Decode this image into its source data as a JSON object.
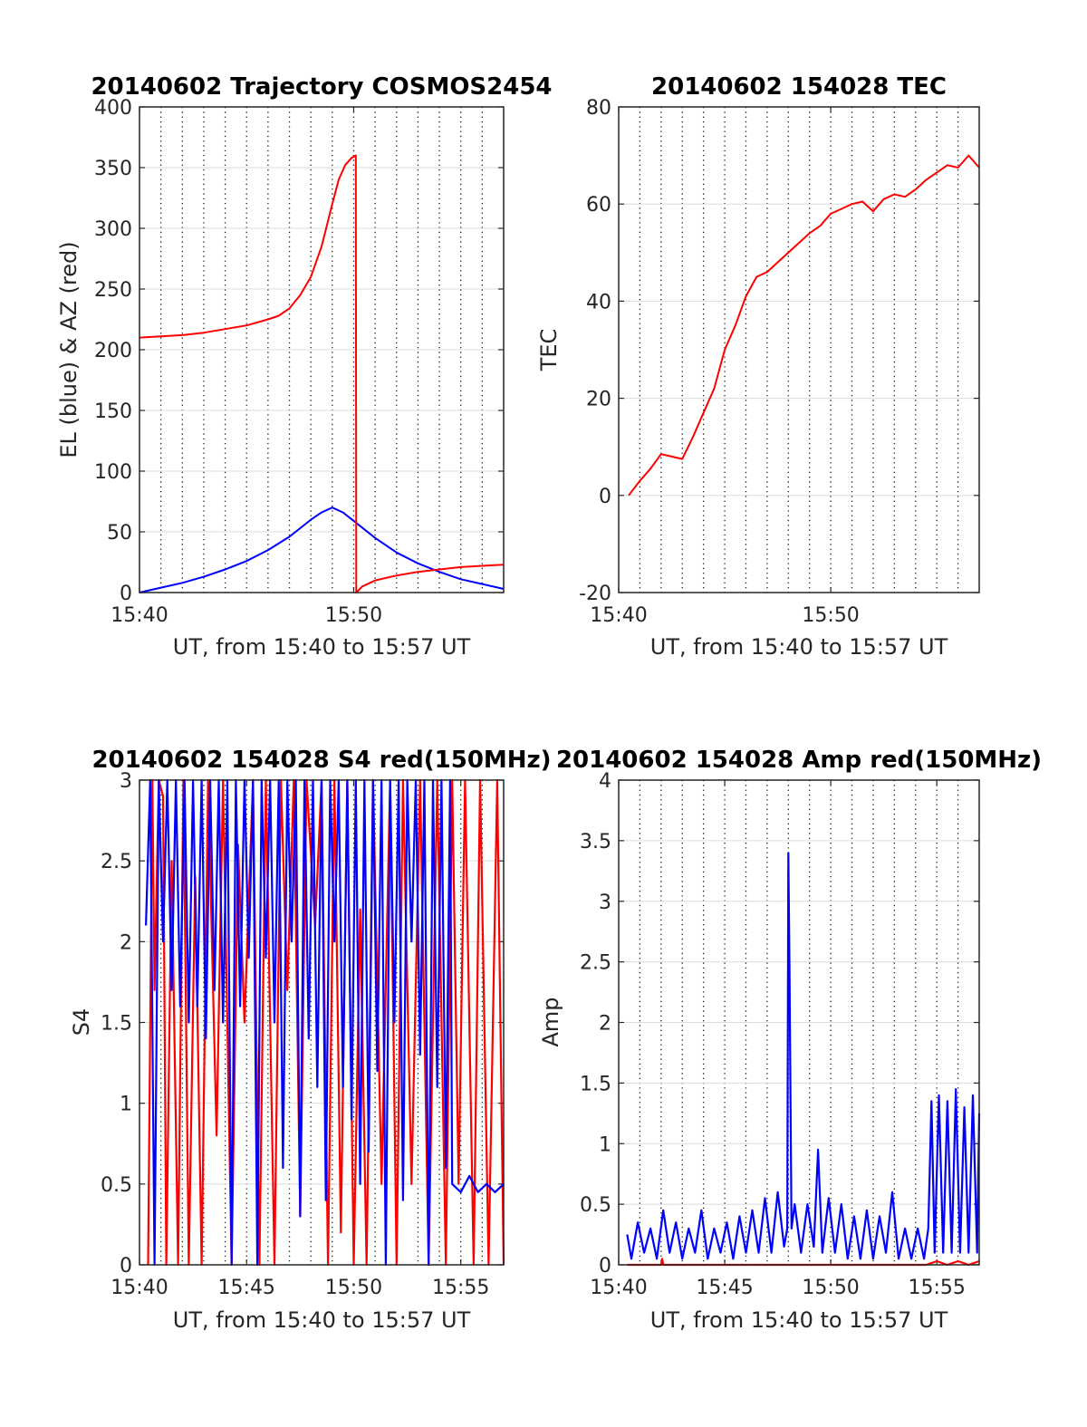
{
  "chart_data": [
    {
      "type": "line",
      "title": "20140602 Trajectory COSMOS2454",
      "xlabel": "UT, from 15:40 to 15:57 UT",
      "ylabel": "EL (blue) & AZ (red)",
      "xlim": [
        0,
        17
      ],
      "ylim": [
        0,
        400
      ],
      "x_tick_labels": [
        "15:40",
        "15:50"
      ],
      "y_tick_labels": [
        "0",
        "50",
        "100",
        "150",
        "200",
        "250",
        "300",
        "350",
        "400"
      ],
      "grid": "on (dotted vertical every minute, horizontal at y ticks)",
      "series": [
        {
          "color": "#0000ff",
          "x": [
            0,
            1,
            2,
            3,
            4,
            5,
            6,
            7,
            8,
            8.5,
            9,
            9.5,
            10,
            11,
            12,
            13,
            14,
            15,
            16,
            17
          ],
          "values": [
            0,
            4,
            8,
            13,
            19,
            26,
            35,
            46,
            60,
            66,
            70,
            66,
            59,
            45,
            33,
            24,
            17,
            11,
            7,
            3
          ]
        },
        {
          "color": "#ff0000",
          "x": [
            0,
            1,
            2,
            3,
            4,
            5,
            6,
            6.5,
            7,
            7.5,
            8,
            8.5,
            9,
            9.3,
            9.6,
            9.9,
            10.1,
            10.12,
            10.4,
            11,
            12,
            13,
            14,
            15,
            16,
            17
          ],
          "values": [
            210,
            211,
            212,
            214,
            217,
            220,
            225,
            228,
            234,
            245,
            260,
            285,
            320,
            340,
            352,
            358,
            360,
            0,
            5,
            10,
            14,
            17,
            19,
            21,
            22,
            23
          ]
        }
      ]
    },
    {
      "type": "line",
      "title": "20140602 154028 TEC",
      "xlabel": "UT, from 15:40 to 15:57 UT",
      "ylabel": "TEC",
      "xlim": [
        0,
        17
      ],
      "ylim": [
        -20,
        80
      ],
      "x_tick_labels": [
        "15:40",
        "15:50"
      ],
      "y_tick_labels": [
        "-20",
        "0",
        "20",
        "40",
        "60",
        "80"
      ],
      "grid": "on",
      "series": [
        {
          "color": "#ff0000",
          "x": [
            0.47,
            1,
            1.5,
            2,
            2.5,
            3,
            3.5,
            4,
            4.5,
            5,
            5.5,
            6,
            6.5,
            7,
            7.5,
            8,
            8.5,
            9,
            9.5,
            10,
            10.5,
            11,
            11.5,
            12,
            12.5,
            13,
            13.5,
            14,
            14.5,
            15,
            15.5,
            16,
            16.5,
            17
          ],
          "values": [
            0,
            3,
            5.5,
            8.5,
            8,
            7.5,
            12,
            17,
            22,
            30,
            35,
            41,
            45,
            46,
            48,
            50,
            52,
            54,
            55.5,
            58,
            59,
            60,
            60.5,
            58.5,
            61,
            62,
            61.5,
            63,
            65,
            66.5,
            68,
            67.5,
            70,
            67.5
          ]
        }
      ]
    },
    {
      "type": "line",
      "title": "20140602 154028 S4 red(150MHz)",
      "xlabel": "UT, from 15:40 to 15:57 UT",
      "ylabel": "S4",
      "xlim": [
        0,
        17
      ],
      "ylim": [
        0,
        3
      ],
      "x_tick_labels": [
        "15:40",
        "15:45",
        "15:50",
        "15:55"
      ],
      "y_tick_labels": [
        "0",
        "0.5",
        "1",
        "1.5",
        "2",
        "2.5",
        "3"
      ],
      "grid": "on",
      "series": [
        {
          "color": "#ff0000",
          "x": [
            0.4,
            0.6,
            0.7,
            0.9,
            1.1,
            1.25,
            1.5,
            1.8,
            2.05,
            2.3,
            2.6,
            2.9,
            3.2,
            3.6,
            3.9,
            4.3,
            4.6,
            4.9,
            5.3,
            5.6,
            5.9,
            6.3,
            6.6,
            6.9,
            7.2,
            7.5,
            7.8,
            8.2,
            8.5,
            8.8,
            9.1,
            9.4,
            9.7,
            10.0,
            10.3,
            10.6,
            10.9,
            11.3,
            11.7,
            12.0,
            12.3,
            12.7,
            13.1,
            13.5,
            13.9,
            14.3,
            14.6,
            14.9,
            15.2,
            15.6,
            15.9,
            16.3,
            16.7,
            17.0
          ],
          "values": [
            0,
            3,
            1.7,
            3,
            2.9,
            0,
            2.5,
            0,
            3,
            0,
            2.4,
            0,
            3,
            0.8,
            3,
            0,
            2.6,
            1.5,
            3,
            0,
            3,
            0,
            3,
            1.7,
            3,
            0.3,
            3,
            2.1,
            3,
            0,
            3,
            0.2,
            3,
            0,
            2.2,
            0,
            3,
            0.5,
            3,
            0,
            3,
            0.5,
            3,
            0,
            3,
            0,
            3,
            0.5,
            3,
            0,
            3,
            0,
            3,
            0
          ]
        },
        {
          "color": "#0000ff",
          "x": [
            0.3,
            0.5,
            0.7,
            0.9,
            1.1,
            1.3,
            1.5,
            1.7,
            1.9,
            2.1,
            2.3,
            2.5,
            2.7,
            2.9,
            3.1,
            3.3,
            3.5,
            3.7,
            3.9,
            4.1,
            4.3,
            4.5,
            4.7,
            4.9,
            5.1,
            5.3,
            5.5,
            5.7,
            5.9,
            6.1,
            6.3,
            6.5,
            6.7,
            6.9,
            7.1,
            7.3,
            7.5,
            7.7,
            7.9,
            8.1,
            8.3,
            8.5,
            8.7,
            8.9,
            9.1,
            9.3,
            9.5,
            9.7,
            9.9,
            10.1,
            10.3,
            10.5,
            10.7,
            10.9,
            11.1,
            11.3,
            11.5,
            11.7,
            11.9,
            12.1,
            12.3,
            12.5,
            12.7,
            12.9,
            13.1,
            13.3,
            13.5,
            13.7,
            13.9,
            14.1,
            14.3,
            14.5,
            14.6,
            15.0,
            15.4,
            15.8,
            16.2,
            16.6,
            17.0
          ],
          "values": [
            2.1,
            3,
            0,
            3,
            2.0,
            3,
            1.7,
            3,
            1.6,
            3,
            1.5,
            3,
            1.6,
            3,
            1.4,
            3,
            1.7,
            3,
            1.5,
            3,
            0,
            3,
            1.6,
            3,
            1.9,
            3,
            0,
            3,
            1.9,
            3,
            1.5,
            3,
            0.6,
            3,
            2.0,
            3,
            0.3,
            3,
            1.4,
            3,
            1.1,
            3,
            0.4,
            3,
            2.0,
            3,
            1.1,
            3,
            0.9,
            3,
            0.5,
            3,
            0.7,
            3,
            1.2,
            3,
            0,
            3,
            1.5,
            3,
            0.4,
            3,
            2.0,
            3,
            1.3,
            3,
            0,
            3,
            1.1,
            3,
            0.6,
            3,
            0.5,
            0.45,
            0.55,
            0.45,
            0.5,
            0.45,
            0.5
          ]
        }
      ]
    },
    {
      "type": "line",
      "title": "20140602 154028 Amp red(150MHz)",
      "xlabel": "UT, from 15:40 to 15:57 UT",
      "ylabel": "Amp",
      "xlim": [
        0,
        17
      ],
      "ylim": [
        0,
        4
      ],
      "x_tick_labels": [
        "15:40",
        "15:45",
        "15:50",
        "15:55"
      ],
      "y_tick_labels": [
        "0",
        "0.5",
        "1",
        "1.5",
        "2",
        "2.5",
        "3",
        "3.5",
        "4"
      ],
      "grid": "on",
      "series": [
        {
          "color": "#ff0000",
          "x": [
            0.4,
            2.0,
            2.05,
            2.1,
            4.0,
            8.0,
            12.0,
            14.5,
            15.0,
            15.5,
            16.0,
            16.5,
            17.0
          ],
          "values": [
            0,
            0,
            0.05,
            0,
            0,
            0,
            0,
            0,
            0.03,
            0,
            0.03,
            0,
            0.03
          ]
        },
        {
          "color": "#0000ff",
          "x": [
            0.4,
            0.6,
            0.9,
            1.2,
            1.5,
            1.8,
            2.1,
            2.4,
            2.7,
            3.0,
            3.3,
            3.6,
            3.9,
            4.2,
            4.5,
            4.8,
            5.1,
            5.4,
            5.7,
            6.0,
            6.3,
            6.6,
            6.9,
            7.2,
            7.5,
            7.8,
            7.95,
            8.0,
            8.05,
            8.15,
            8.3,
            8.6,
            8.9,
            9.2,
            9.4,
            9.6,
            9.9,
            10.2,
            10.5,
            10.8,
            11.1,
            11.4,
            11.7,
            12.0,
            12.3,
            12.6,
            12.9,
            13.2,
            13.5,
            13.8,
            14.1,
            14.4,
            14.6,
            14.75,
            14.9,
            15.1,
            15.3,
            15.5,
            15.7,
            15.9,
            16.1,
            16.3,
            16.5,
            16.7,
            16.9,
            17.0
          ],
          "values": [
            0.25,
            0.05,
            0.35,
            0.1,
            0.3,
            0.05,
            0.45,
            0.1,
            0.35,
            0.05,
            0.3,
            0.1,
            0.45,
            0.05,
            0.3,
            0.1,
            0.35,
            0.05,
            0.4,
            0.1,
            0.45,
            0.1,
            0.55,
            0.1,
            0.6,
            0.15,
            0.3,
            3.4,
            2.5,
            0.3,
            0.5,
            0.1,
            0.5,
            0.15,
            0.95,
            0.1,
            0.55,
            0.1,
            0.5,
            0.05,
            0.4,
            0.05,
            0.45,
            0.05,
            0.4,
            0.1,
            0.6,
            0.05,
            0.3,
            0.05,
            0.3,
            0.05,
            0.3,
            1.35,
            0.1,
            1.4,
            0.1,
            1.35,
            0.1,
            1.45,
            0.1,
            1.3,
            0.1,
            1.4,
            0.1,
            1.25
          ]
        }
      ]
    }
  ]
}
